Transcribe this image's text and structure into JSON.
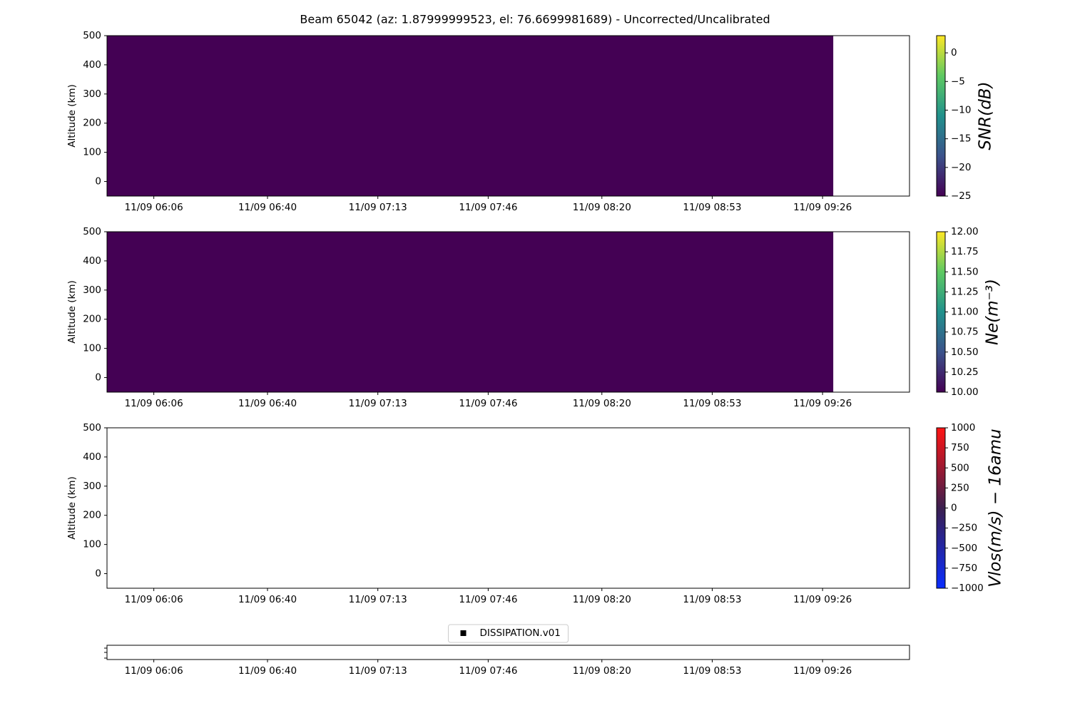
{
  "title": "Beam 65042 (az: 1.87999999523, el: 76.6699981689) - Uncorrected/Uncalibrated",
  "chart_data": [
    {
      "type": "heatmap",
      "ylabel": "Altitude (km)",
      "x": [
        352,
        569.2
      ],
      "y": [
        -50,
        500
      ],
      "values": [
        [
          -25
        ]
      ],
      "xlim": [
        352,
        592
      ],
      "xticks": [
        {
          "value": 366,
          "label": "11/09 06:06"
        },
        {
          "value": 400,
          "label": "11/09 06:40"
        },
        {
          "value": 433,
          "label": "11/09 07:13"
        },
        {
          "value": 466,
          "label": "11/09 07:46"
        },
        {
          "value": 500,
          "label": "11/09 08:20"
        },
        {
          "value": 533,
          "label": "11/09 08:53"
        },
        {
          "value": 566,
          "label": "11/09 09:26"
        }
      ],
      "ylim": [
        -50,
        500
      ],
      "yticks": [
        0,
        100,
        200,
        300,
        400,
        500
      ],
      "colorbar": {
        "label": "SNR(dB)",
        "lim": [
          -25,
          3
        ],
        "ticks": [
          {
            "value": -25,
            "label": "−25"
          },
          {
            "value": -20,
            "label": "−20"
          },
          {
            "value": -15,
            "label": "−15"
          },
          {
            "value": -10,
            "label": "−10"
          },
          {
            "value": -5,
            "label": "−5"
          },
          0
        ],
        "colormap": [
          "#440154",
          "#3b528b",
          "#21918c",
          "#5ec962",
          "#fde725"
        ]
      }
    },
    {
      "type": "heatmap",
      "ylabel": "Altitude (km)",
      "x": [
        352,
        569.2
      ],
      "y": [
        -50,
        500
      ],
      "values": [
        [
          10
        ]
      ],
      "xlim": [
        352,
        592
      ],
      "xticks": [
        {
          "value": 366,
          "label": "11/09 06:06"
        },
        {
          "value": 400,
          "label": "11/09 06:40"
        },
        {
          "value": 433,
          "label": "11/09 07:13"
        },
        {
          "value": 466,
          "label": "11/09 07:46"
        },
        {
          "value": 500,
          "label": "11/09 08:20"
        },
        {
          "value": 533,
          "label": "11/09 08:53"
        },
        {
          "value": 566,
          "label": "11/09 09:26"
        }
      ],
      "ylim": [
        -50,
        500
      ],
      "yticks": [
        0,
        100,
        200,
        300,
        400,
        500
      ],
      "colorbar": {
        "label": "Ne(m⁻³)",
        "lim": [
          10,
          12
        ],
        "ticks": [
          {
            "value": 10,
            "label": "10.00"
          },
          {
            "value": 10.25,
            "label": "10.25"
          },
          {
            "value": 10.5,
            "label": "10.50"
          },
          {
            "value": 10.75,
            "label": "10.75"
          },
          {
            "value": 11,
            "label": "11.00"
          },
          {
            "value": 11.25,
            "label": "11.25"
          },
          {
            "value": 11.5,
            "label": "11.50"
          },
          {
            "value": 11.75,
            "label": "11.75"
          },
          {
            "value": 12,
            "label": "12.00"
          }
        ],
        "colormap": [
          "#440154",
          "#3b528b",
          "#21918c",
          "#5ec962",
          "#fde725"
        ]
      }
    },
    {
      "type": "heatmap",
      "ylabel": "Altitude (km)",
      "xlim": [
        352,
        592
      ],
      "xticks": [
        {
          "value": 366,
          "label": "11/09 06:06"
        },
        {
          "value": 400,
          "label": "11/09 06:40"
        },
        {
          "value": 433,
          "label": "11/09 07:13"
        },
        {
          "value": 466,
          "label": "11/09 07:46"
        },
        {
          "value": 500,
          "label": "11/09 08:20"
        },
        {
          "value": 533,
          "label": "11/09 08:53"
        },
        {
          "value": 566,
          "label": "11/09 09:26"
        }
      ],
      "ylim": [
        -50,
        500
      ],
      "yticks": [
        0,
        100,
        200,
        300,
        400,
        500
      ],
      "colorbar": {
        "label": "Vlos(m/s) − 16amu",
        "lim": [
          -1000,
          1000
        ],
        "ticks": [
          {
            "value": -1000,
            "label": "−1000"
          },
          {
            "value": -750,
            "label": "−750"
          },
          {
            "value": -500,
            "label": "−500"
          },
          {
            "value": -250,
            "label": "−250"
          },
          0,
          250,
          500,
          750,
          1000
        ],
        "colormap": [
          "#0a2dff",
          "#3b1f4f",
          "#ff1414"
        ]
      }
    },
    {
      "type": "line",
      "legend": "upper center",
      "series": [
        {
          "name": "DISSIPATION.v01",
          "color": "#000000",
          "values": []
        }
      ],
      "xlim": [
        352,
        592
      ],
      "xticks": [
        {
          "value": 366,
          "label": "11/09 06:06"
        },
        {
          "value": 400,
          "label": "11/09 06:40"
        },
        {
          "value": 433,
          "label": "11/09 07:13"
        },
        {
          "value": 466,
          "label": "11/09 07:46"
        },
        {
          "value": 500,
          "label": "11/09 08:20"
        },
        {
          "value": 533,
          "label": "11/09 08:53"
        },
        {
          "value": 566,
          "label": "11/09 09:26"
        }
      ]
    }
  ]
}
